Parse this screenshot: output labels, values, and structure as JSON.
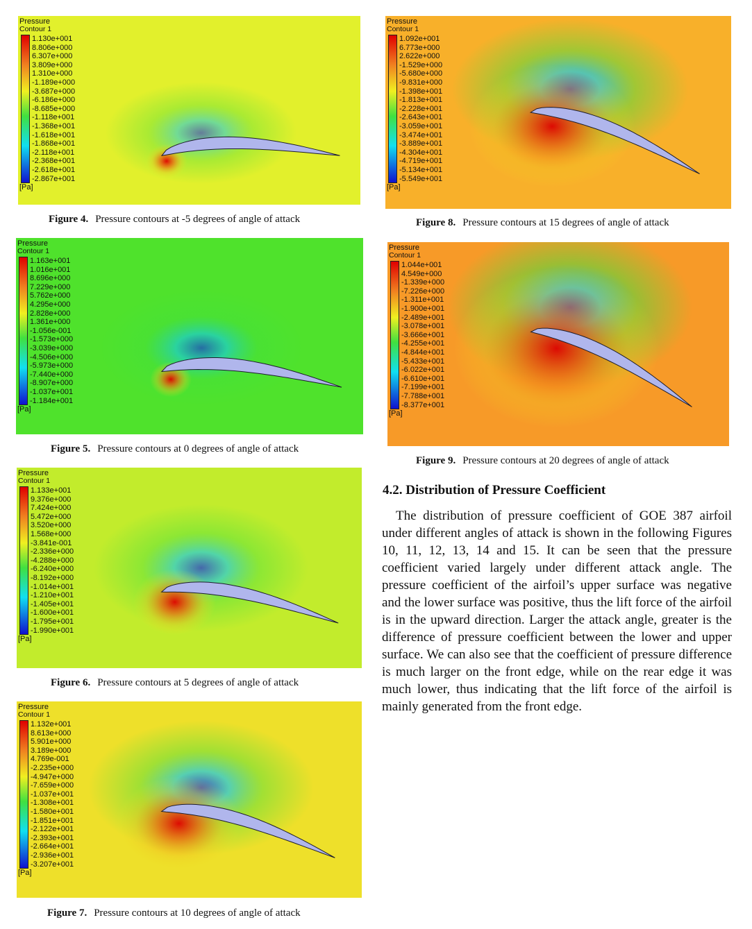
{
  "figures": [
    {
      "id": "fig4",
      "legend_title": "Pressure",
      "legend_subtitle": "Contour 1",
      "unit": "[Pa]",
      "levels": [
        "1.130e+001",
        "8.806e+000",
        "6.307e+000",
        "3.809e+000",
        "1.310e+000",
        "-1.189e+000",
        "-3.687e+000",
        "-6.186e+000",
        "-8.685e+000",
        "-1.118e+001",
        "-1.368e+001",
        "-1.618e+001",
        "-1.868e+001",
        "-2.118e+001",
        "-2.368e+001",
        "-2.618e+001",
        "-2.867e+001"
      ],
      "angle_deg": -5,
      "background": "#e2f02c",
      "caption_label": "Figure 4.",
      "caption_text": "Pressure contours at -5 degrees of angle of attack"
    },
    {
      "id": "fig5",
      "legend_title": "Pressure",
      "legend_subtitle": "Contour 1",
      "unit": "[Pa]",
      "levels": [
        "1.163e+001",
        "1.016e+001",
        "8.696e+000",
        "7.229e+000",
        "5.762e+000",
        "4.295e+000",
        "2.828e+000",
        "1.361e+000",
        "-1.056e-001",
        "-1.573e+000",
        "-3.039e+000",
        "-4.506e+000",
        "-5.973e+000",
        "-7.440e+000",
        "-8.907e+000",
        "-1.037e+001",
        "-1.184e+001"
      ],
      "angle_deg": 0,
      "background": "#4fe22c",
      "caption_label": "Figure 5.",
      "caption_text": "Pressure contours at 0 degrees of angle of attack"
    },
    {
      "id": "fig6",
      "legend_title": "Pressure",
      "legend_subtitle": "Contour 1",
      "unit": "[Pa]",
      "levels": [
        "1.133e+001",
        "9.376e+000",
        "7.424e+000",
        "5.472e+000",
        "3.520e+000",
        "1.568e+000",
        "-3.841e-001",
        "-2.336e+000",
        "-4.288e+000",
        "-6.240e+000",
        "-8.192e+000",
        "-1.014e+001",
        "-1.210e+001",
        "-1.405e+001",
        "-1.600e+001",
        "-1.795e+001",
        "-1.990e+001"
      ],
      "angle_deg": 5,
      "background": "#c2ec2c",
      "caption_label": "Figure 6.",
      "caption_text": "Pressure contours at 5 degrees of angle of attack"
    },
    {
      "id": "fig7",
      "legend_title": "Pressure",
      "legend_subtitle": "Contour 1",
      "unit": "[Pa]",
      "levels": [
        "1.132e+001",
        "8.613e+000",
        "5.901e+000",
        "3.189e+000",
        "4.769e-001",
        "-2.235e+000",
        "-4.947e+000",
        "-7.659e+000",
        "-1.037e+001",
        "-1.308e+001",
        "-1.580e+001",
        "-1.851e+001",
        "-2.122e+001",
        "-2.393e+001",
        "-2.664e+001",
        "-2.936e+001",
        "-3.207e+001"
      ],
      "angle_deg": 10,
      "background": "#eee02a",
      "caption_label": "Figure 7.",
      "caption_text": "Pressure contours at 10 degrees of angle of attack"
    },
    {
      "id": "fig8",
      "legend_title": "Pressure",
      "legend_subtitle": "Contour 1",
      "unit": "[Pa]",
      "levels": [
        "1.092e+001",
        "6.773e+000",
        "2.622e+000",
        "-1.529e+000",
        "-5.680e+000",
        "-9.831e+000",
        "-1.398e+001",
        "-1.813e+001",
        "-2.228e+001",
        "-2.643e+001",
        "-3.059e+001",
        "-3.474e+001",
        "-3.889e+001",
        "-4.304e+001",
        "-4.719e+001",
        "-5.134e+001",
        "-5.549e+001"
      ],
      "angle_deg": 15,
      "background": "#f8b02a",
      "caption_label": "Figure 8.",
      "caption_text": "Pressure contours at 15 degrees of angle of attack"
    },
    {
      "id": "fig9",
      "legend_title": "Pressure",
      "legend_subtitle": "Contour 1",
      "unit": "[Pa]",
      "levels": [
        "1.044e+001",
        "4.549e+000",
        "-1.339e+000",
        "-7.226e+000",
        "-1.311e+001",
        "-1.900e+001",
        "-2.489e+001",
        "-3.078e+001",
        "-3.666e+001",
        "-4.255e+001",
        "-4.844e+001",
        "-5.433e+001",
        "-6.022e+001",
        "-6.610e+001",
        "-7.199e+001",
        "-7.788e+001",
        "-8.377e+001"
      ],
      "angle_deg": 20,
      "background": "#f79a28",
      "caption_label": "Figure 9.",
      "caption_text": "Pressure contours at 20 degrees of angle of attack"
    }
  ],
  "section": {
    "heading": "4.2. Distribution of Pressure Coefficient",
    "paragraph": "The distribution of pressure coefficient of GOE 387 airfoil under different angles of attack is shown in the following Figures 10, 11, 12, 13, 14 and 15. It can be seen that the pressure coefficient varied largely under different attack angle. The pressure coefficient of the airfoil’s upper surface was negative and the lower surface was positive, thus the lift force of the airfoil is in the upward direction. Larger the attack angle, greater is the difference of pressure coefficient between the lower and upper surface. We can also see that the coefficient of pressure difference is much larger on the front edge, while on the rear edge it was much lower, thus indicating that the lift force of the airfoil is mainly generated from the front edge."
  }
}
